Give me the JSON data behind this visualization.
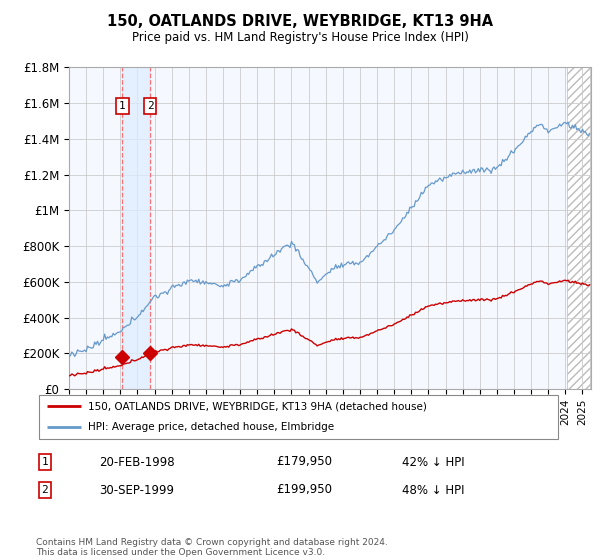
{
  "title": "150, OATLANDS DRIVE, WEYBRIDGE, KT13 9HA",
  "subtitle": "Price paid vs. HM Land Registry's House Price Index (HPI)",
  "legend_line1": "150, OATLANDS DRIVE, WEYBRIDGE, KT13 9HA (detached house)",
  "legend_line2": "HPI: Average price, detached house, Elmbridge",
  "footer": "Contains HM Land Registry data © Crown copyright and database right 2024.\nThis data is licensed under the Open Government Licence v3.0.",
  "sale1_date": "20-FEB-1998",
  "sale1_price": "£179,950",
  "sale1_hpi": "42% ↓ HPI",
  "sale2_date": "30-SEP-1999",
  "sale2_price": "£199,950",
  "sale2_hpi": "48% ↓ HPI",
  "sale1_x": 1998.12,
  "sale1_y": 179950,
  "sale2_x": 1999.75,
  "sale2_y": 199950,
  "hpi_color": "#6699cc",
  "sale_color": "#cc0000",
  "hpi_shade_color": "#ddeeff",
  "ylim_max": 1800000,
  "yticks": [
    0,
    200000,
    400000,
    600000,
    800000,
    1000000,
    1200000,
    1400000,
    1600000,
    1800000
  ],
  "ytick_labels": [
    "£0",
    "£200K",
    "£400K",
    "£600K",
    "£800K",
    "£1M",
    "£1.2M",
    "£1.4M",
    "£1.6M",
    "£1.8M"
  ],
  "xlim_min": 1995.0,
  "xlim_max": 2025.5,
  "background_color": "#ffffff",
  "grid_color": "#cccccc",
  "chart_bg": "#f5f8ff"
}
